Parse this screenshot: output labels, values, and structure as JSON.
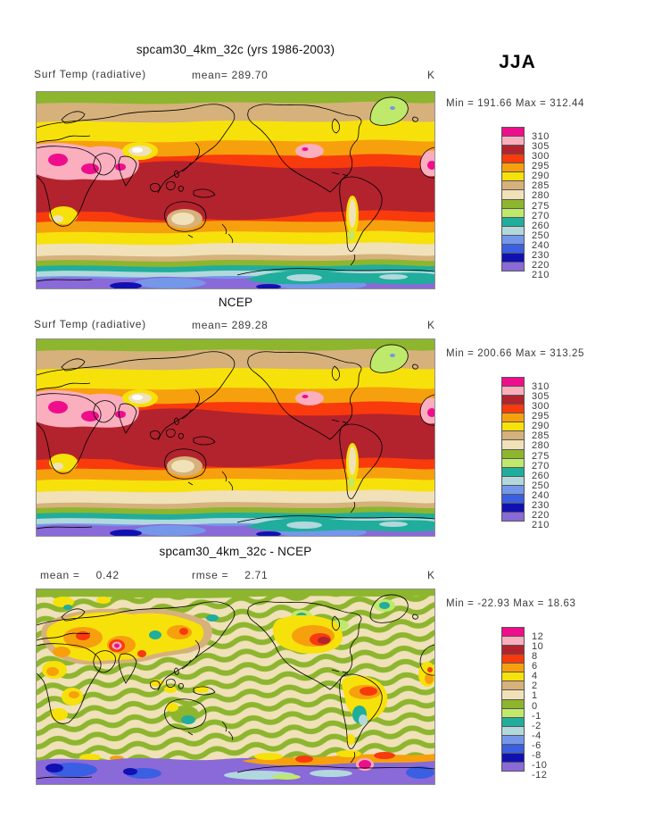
{
  "page": {
    "season_label": "JJA"
  },
  "labels": {
    "variable": "Surf Temp (radiative)",
    "mean_compact": "mean=",
    "mean_spaced": "mean =",
    "rmse_spaced": "rmse =",
    "min_label": "Min =",
    "max_label": "Max =",
    "unit": "K"
  },
  "colors": {
    "palette": [
      "#EE0E8C",
      "#FBAEBE",
      "#B2232E",
      "#F83A0D",
      "#F7A00E",
      "#F7E10B",
      "#D6B17B",
      "#F0E1B9",
      "#8DB62E",
      "#BEE96A",
      "#21AD9C",
      "#B1D9DD",
      "#7497EA",
      "#3A5FE3",
      "#1111B2",
      "#8A69D8"
    ],
    "palette_order": "top-to-bottom of colorbar: magenta, pink, dark-red, red-orange, orange, yellow, tan, beige, green, light-green, teal, pale-blue, cornflower, blue, navy, purple",
    "coastline": "#000000",
    "frame": "#8f8f8f",
    "text_gray": "#3b3b3b"
  },
  "chart_data": [
    {
      "type": "contour-map",
      "title": "spcam30_4km_32c (yrs 1986-2003)",
      "variable": "Surf Temp (radiative)",
      "stats": {
        "mean": "289.70"
      },
      "units": "K",
      "min": "191.66",
      "max": "312.44",
      "levels": [
        310,
        305,
        300,
        295,
        290,
        285,
        280,
        275,
        270,
        260,
        250,
        240,
        230,
        220,
        210
      ],
      "projection": "global cylindrical, Pacific-centered, lon 0E-360E, lat 90N-90S",
      "legend_position": "right"
    },
    {
      "type": "contour-map",
      "title": "NCEP",
      "variable": "Surf Temp (radiative)",
      "stats": {
        "mean": "289.28"
      },
      "units": "K",
      "min": "200.66",
      "max": "313.25",
      "levels": [
        310,
        305,
        300,
        295,
        290,
        285,
        280,
        275,
        270,
        260,
        250,
        240,
        230,
        220,
        210
      ],
      "projection": "global cylindrical, Pacific-centered, lon 0E-360E, lat 90N-90S",
      "legend_position": "right"
    },
    {
      "type": "contour-map",
      "title": "spcam30_4km_32c - NCEP",
      "stats": {
        "mean": "0.42",
        "rmse": "2.71"
      },
      "units": "K",
      "min": "-22.93",
      "max": "18.63",
      "levels": [
        12,
        10,
        8,
        6,
        4,
        2,
        1,
        0,
        -1,
        -2,
        -4,
        -6,
        -8,
        -10,
        -12
      ],
      "projection": "global cylindrical, Pacific-centered, lon 0E-360E, lat 90N-90S",
      "legend_position": "right"
    }
  ]
}
